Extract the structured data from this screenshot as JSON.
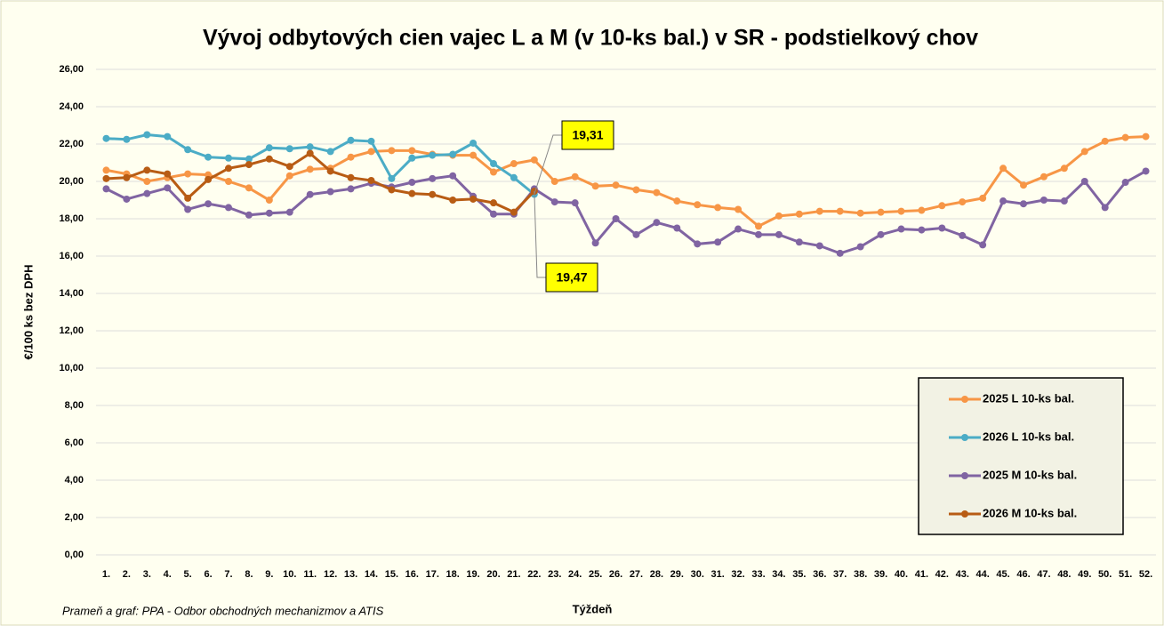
{
  "chart_data": {
    "type": "line",
    "title": "Vývoj odbytových cien vajec L a M (v 10-ks bal.) v SR - podstielkový chov",
    "y_label": "€/100 ks bez DPH",
    "x_label": "Týždeň",
    "source": "Prameň a graf: PPA - Odbor obchodných mechanizmov a ATIS",
    "categories": [
      "1.",
      "2.",
      "3.",
      "4.",
      "5.",
      "6.",
      "7.",
      "8.",
      "9.",
      "10.",
      "11.",
      "12.",
      "13.",
      "14.",
      "15.",
      "16.",
      "17.",
      "18.",
      "19.",
      "20.",
      "21.",
      "22.",
      "23.",
      "24.",
      "25.",
      "26.",
      "27.",
      "28.",
      "29.",
      "30.",
      "31.",
      "32.",
      "33.",
      "34.",
      "35.",
      "36.",
      "37.",
      "38.",
      "39.",
      "40.",
      "41.",
      "42.",
      "43.",
      "44.",
      "45.",
      "46.",
      "47.",
      "48.",
      "49.",
      "50.",
      "51.",
      "52."
    ],
    "ylim": [
      0,
      26
    ],
    "yticks": [
      {
        "value": 0,
        "label": "0,00"
      },
      {
        "value": 2,
        "label": "2,00"
      },
      {
        "value": 4,
        "label": "4,00"
      },
      {
        "value": 6,
        "label": "6,00"
      },
      {
        "value": 8,
        "label": "8,00"
      },
      {
        "value": 10,
        "label": "10,00"
      },
      {
        "value": 12,
        "label": "12,00"
      },
      {
        "value": 14,
        "label": "14,00"
      },
      {
        "value": 16,
        "label": "16,00"
      },
      {
        "value": 18,
        "label": "18,00"
      },
      {
        "value": 20,
        "label": "20,00"
      },
      {
        "value": 22,
        "label": "22,00"
      },
      {
        "value": 24,
        "label": "24,00"
      },
      {
        "value": 26,
        "label": "26,00"
      }
    ],
    "grid": true,
    "legend": "lower right",
    "series": [
      {
        "name": "2025 L 10-ks bal.",
        "color": "#f79646",
        "values": [
          20.6,
          20.4,
          20.0,
          20.2,
          20.4,
          20.35,
          20.0,
          19.65,
          19.0,
          20.3,
          20.65,
          20.7,
          21.3,
          21.6,
          21.65,
          21.65,
          21.45,
          21.4,
          21.4,
          20.5,
          20.95,
          21.15,
          20.0,
          20.25,
          19.75,
          19.8,
          19.55,
          19.4,
          18.95,
          18.75,
          18.6,
          18.5,
          17.6,
          18.15,
          18.25,
          18.4,
          18.4,
          18.3,
          18.35,
          18.4,
          18.45,
          18.7,
          18.9,
          19.1,
          20.7,
          19.8,
          20.25,
          20.7,
          21.6,
          22.15,
          22.35,
          22.4
        ]
      },
      {
        "name": "2026 L 10-ks bal.",
        "color": "#4bacc6",
        "values": [
          22.3,
          22.25,
          22.5,
          22.4,
          21.7,
          21.3,
          21.25,
          21.2,
          21.8,
          21.75,
          21.85,
          21.6,
          22.2,
          22.15,
          20.15,
          21.25,
          21.4,
          21.45,
          22.05,
          20.95,
          20.2,
          19.31,
          null,
          null,
          null,
          null,
          null,
          null,
          null,
          null,
          null,
          null,
          null,
          null,
          null,
          null,
          null,
          null,
          null,
          null,
          null,
          null,
          null,
          null,
          null,
          null,
          null,
          null,
          null,
          null,
          null,
          null
        ],
        "value_labels": [
          null,
          null,
          null,
          null,
          null,
          null,
          null,
          null,
          null,
          null,
          null,
          null,
          null,
          null,
          null,
          null,
          null,
          null,
          null,
          null,
          null,
          "19,31",
          null,
          null,
          null,
          null,
          null,
          null,
          null,
          null,
          null,
          null,
          null,
          null,
          null,
          null,
          null,
          null,
          null,
          null,
          null,
          null,
          null,
          null,
          null,
          null,
          null,
          null,
          null,
          null,
          null,
          null
        ]
      },
      {
        "name": "2025 M 10-ks bal.",
        "color": "#8064a2",
        "values": [
          19.6,
          19.05,
          19.35,
          19.65,
          18.5,
          18.8,
          18.6,
          18.2,
          18.3,
          18.35,
          19.3,
          19.45,
          19.6,
          19.9,
          19.7,
          19.95,
          20.15,
          20.3,
          19.2,
          18.25,
          18.25,
          19.6,
          18.9,
          18.85,
          16.7,
          18.0,
          17.15,
          17.8,
          17.5,
          16.65,
          16.75,
          17.45,
          17.15,
          17.15,
          16.75,
          16.55,
          16.15,
          16.5,
          17.15,
          17.45,
          17.4,
          17.5,
          17.1,
          16.6,
          18.95,
          18.8,
          19.0,
          18.95,
          20.0,
          18.6,
          19.95,
          20.55
        ]
      },
      {
        "name": "2026 M 10-ks bal.",
        "color": "#b85c14",
        "values": [
          20.15,
          20.2,
          20.6,
          20.4,
          19.1,
          20.1,
          20.7,
          20.9,
          21.2,
          20.8,
          21.5,
          20.55,
          20.2,
          20.05,
          19.55,
          19.35,
          19.3,
          19.0,
          19.05,
          18.85,
          18.35,
          19.47,
          null,
          null,
          null,
          null,
          null,
          null,
          null,
          null,
          null,
          null,
          null,
          null,
          null,
          null,
          null,
          null,
          null,
          null,
          null,
          null,
          null,
          null,
          null,
          null,
          null,
          null,
          null,
          null,
          null,
          null
        ],
        "value_labels": [
          null,
          null,
          null,
          null,
          null,
          null,
          null,
          null,
          null,
          null,
          null,
          null,
          null,
          null,
          null,
          null,
          null,
          null,
          null,
          null,
          null,
          "19,47",
          null,
          null,
          null,
          null,
          null,
          null,
          null,
          null,
          null,
          null,
          null,
          null,
          null,
          null,
          null,
          null,
          null,
          null,
          null,
          null,
          null,
          null,
          null,
          null,
          null,
          null,
          null,
          null,
          null,
          null
        ]
      }
    ]
  }
}
